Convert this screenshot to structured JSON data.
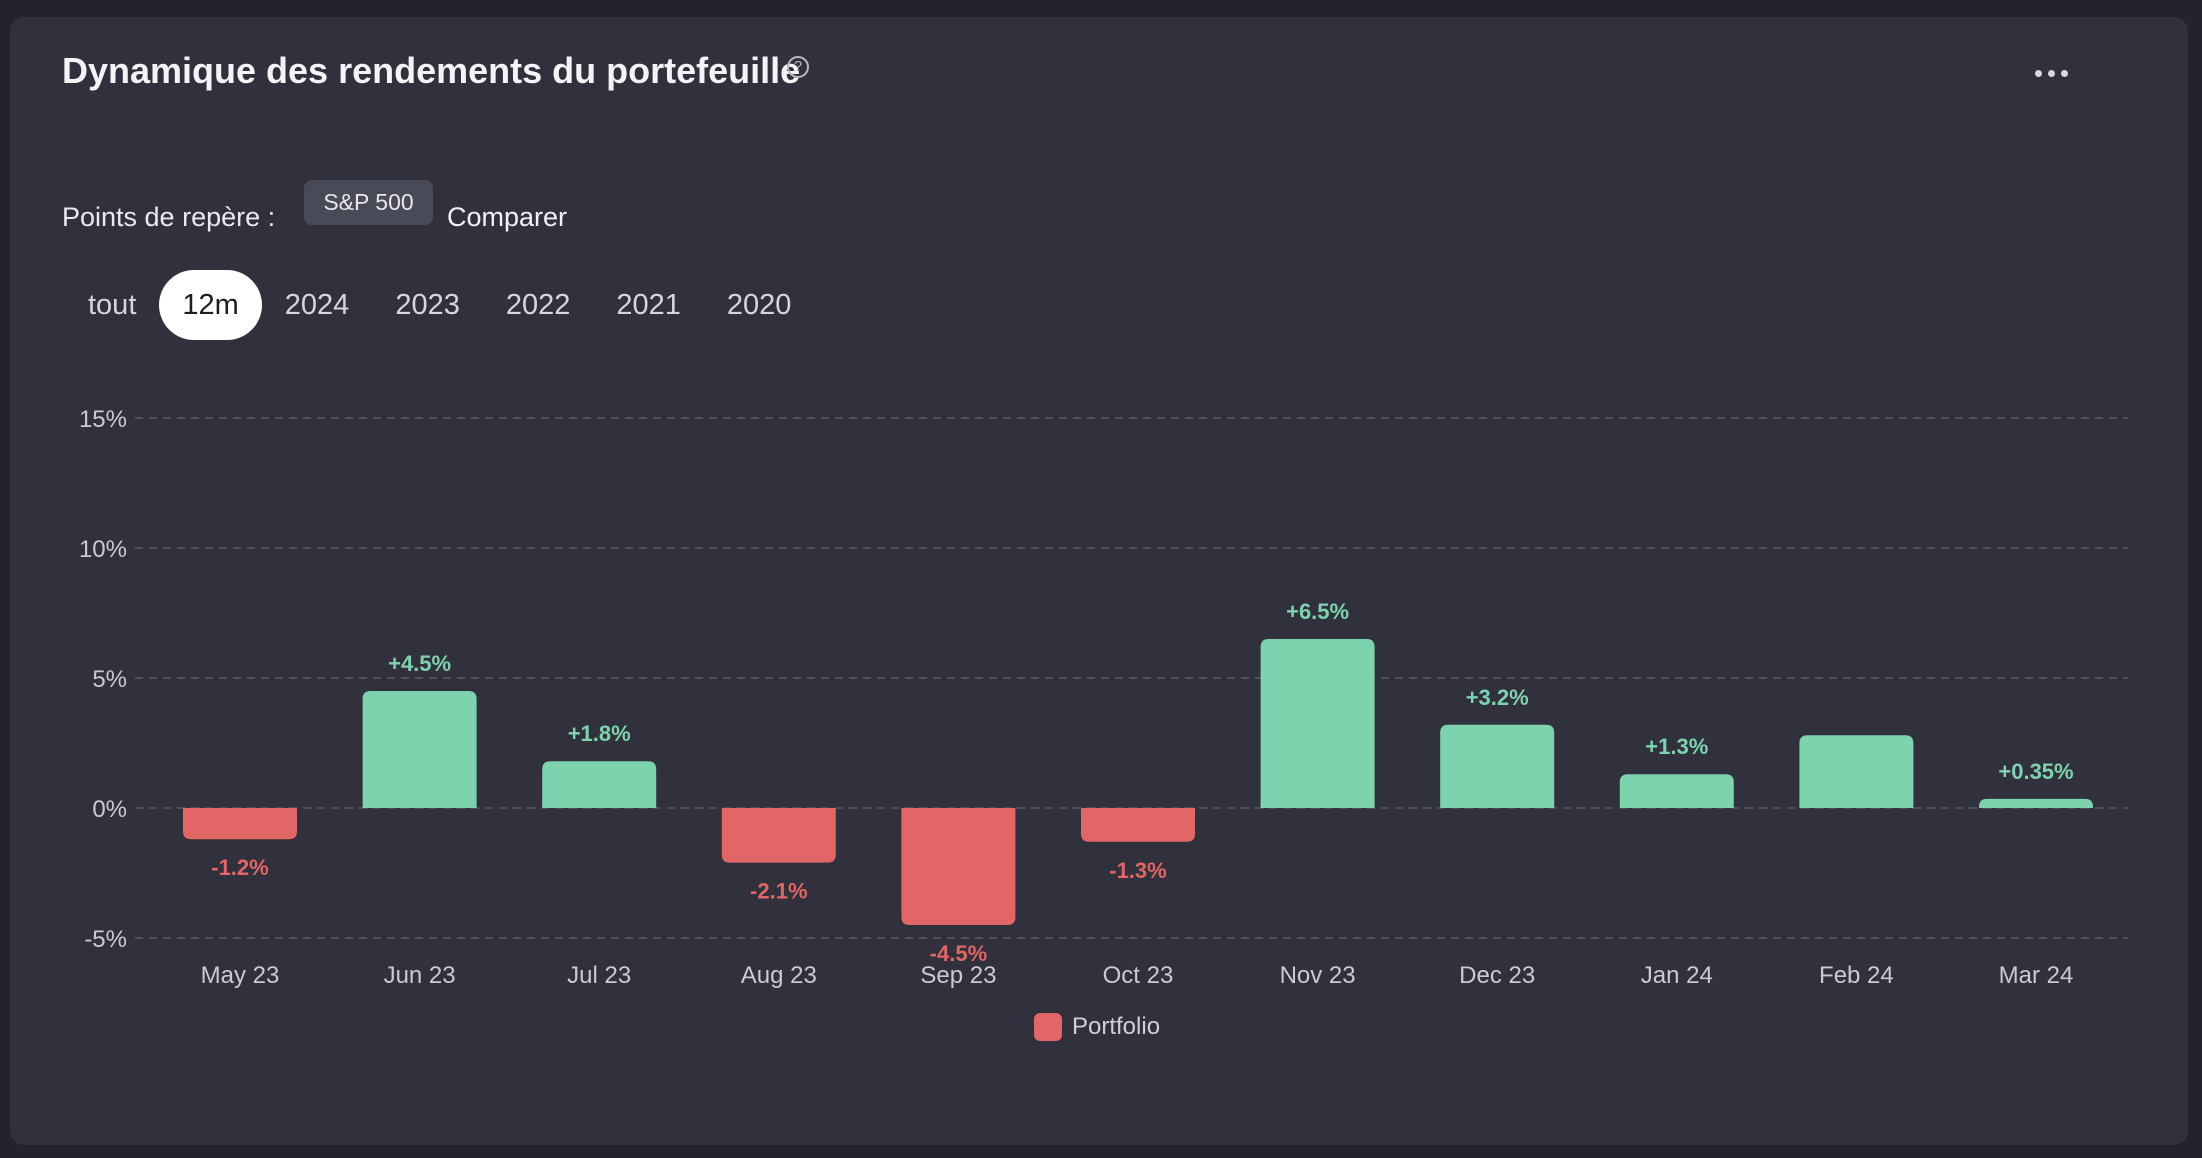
{
  "header": {
    "title": "Dynamique des rendements du portefeuille",
    "help_icon": "question-circle-icon",
    "help_glyph": "?",
    "more_icon": "more-horizontal-icon"
  },
  "benchmark": {
    "label": "Points de repère :",
    "chip": "S&P 500",
    "compare": "Comparer"
  },
  "periods": [
    {
      "label": "tout",
      "active": false
    },
    {
      "label": "12m",
      "active": true
    },
    {
      "label": "2024",
      "active": false
    },
    {
      "label": "2023",
      "active": false
    },
    {
      "label": "2022",
      "active": false
    },
    {
      "label": "2021",
      "active": false
    },
    {
      "label": "2020",
      "active": false
    }
  ],
  "colors": {
    "positive": "#7dd3ae",
    "negative": "#e16665",
    "grid": "#5a5b66",
    "axis_text": "#c9cad2",
    "card": "#30313c"
  },
  "chart_data": {
    "type": "bar",
    "categories": [
      "May 23",
      "Jun 23",
      "Jul 23",
      "Aug 23",
      "Sep 23",
      "Oct 23",
      "Nov 23",
      "Dec 23",
      "Jan 24",
      "Feb 24",
      "Mar 24"
    ],
    "series": [
      {
        "name": "Portfolio",
        "values": [
          -1.2,
          4.5,
          1.8,
          -2.1,
          -4.5,
          -1.3,
          6.5,
          3.2,
          1.3,
          2.8,
          0.35
        ],
        "labels": [
          "-1.2%",
          "+4.5%",
          "+1.8%",
          "-2.1%",
          "-4.5%",
          "-1.3%",
          "+6.5%",
          "+3.2%",
          "+1.3%",
          "",
          "+0.35%"
        ]
      }
    ],
    "yticks": [
      15,
      10,
      5,
      0,
      -5
    ],
    "ytick_labels": [
      "15%",
      "10%",
      "5%",
      "0%",
      "-5%"
    ],
    "ylim": [
      -5,
      15
    ],
    "grid": true,
    "legend": {
      "position": "bottom-center",
      "label": "Portfolio"
    }
  }
}
